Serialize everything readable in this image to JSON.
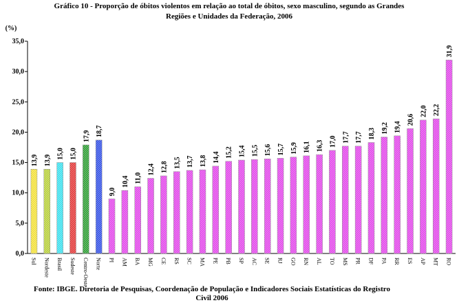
{
  "chart_data": {
    "type": "bar",
    "title": [
      "Gráfico 10 - Proporção de óbitos violentos em relação ao total de óbitos, sexo masculino, segundo as Grandes",
      "Regiões e Unidades da Federação, 2006"
    ],
    "y_label": "(%)",
    "source": [
      "Fonte: IBGE. Diretoria de Pesquisas, Coordenação de População e Indicadores Sociais Estatísticas do Registro",
      "Civil 2006"
    ],
    "categories": [
      "Sul",
      "Nordeste",
      "Brasil",
      "Sudeste",
      "Centro-Oeste",
      "Norte",
      "PI",
      "AM",
      "BA",
      "MG",
      "CE",
      "RS",
      "SC",
      "MA",
      "PE",
      "PB",
      "SP",
      "AC",
      "SE",
      "RJ",
      "GO",
      "RN",
      "AL",
      "TO",
      "MS",
      "PR",
      "DF",
      "PA",
      "RR",
      "ES",
      "AP",
      "MT",
      "RO"
    ],
    "values": [
      13.9,
      13.9,
      15.0,
      15.0,
      17.9,
      18.7,
      9.0,
      10.4,
      11.0,
      12.4,
      12.8,
      13.5,
      13.7,
      13.8,
      14.4,
      15.2,
      15.4,
      15.5,
      15.6,
      15.7,
      15.9,
      16.1,
      16.3,
      17.0,
      17.7,
      17.7,
      18.3,
      19.2,
      19.4,
      20.6,
      22.0,
      22.2,
      31.9
    ],
    "value_labels": [
      "13,9",
      "13,9",
      "15,0",
      "15,0",
      "17,9",
      "18,7",
      "9,0",
      "10,4",
      "11,0",
      "12,4",
      "12,8",
      "13,5",
      "13,7",
      "13,8",
      "14,4",
      "15,2",
      "15,4",
      "15,5",
      "15,6",
      "15,7",
      "15,9",
      "16,1",
      "16,3",
      "17,0",
      "17,7",
      "17,7",
      "18,3",
      "19,2",
      "19,4",
      "20,6",
      "22,0",
      "22,2",
      "31,9"
    ],
    "colors": [
      "#f2e03a",
      "#b8cf3c",
      "#3ee0ee",
      "#e23a3a",
      "#2f9e35",
      "#3552e6",
      "#e248ea",
      "#e248ea",
      "#e248ea",
      "#e248ea",
      "#e248ea",
      "#e248ea",
      "#e248ea",
      "#e248ea",
      "#e248ea",
      "#e248ea",
      "#e248ea",
      "#e248ea",
      "#e248ea",
      "#e248ea",
      "#e248ea",
      "#e248ea",
      "#e248ea",
      "#e248ea",
      "#e248ea",
      "#e248ea",
      "#e248ea",
      "#e248ea",
      "#e248ea",
      "#e248ea",
      "#e248ea",
      "#e248ea",
      "#e248ea"
    ],
    "ylim": [
      0,
      35
    ],
    "yticks": [
      {
        "value": 0,
        "label": "0,0"
      },
      {
        "value": 5,
        "label": "5,0"
      },
      {
        "value": 10,
        "label": "10,0"
      },
      {
        "value": 15,
        "label": "15,0"
      },
      {
        "value": 20,
        "label": "20,0"
      },
      {
        "value": 25,
        "label": "25,0"
      },
      {
        "value": 30,
        "label": "30,0"
      },
      {
        "value": 35,
        "label": "35,0"
      }
    ]
  }
}
